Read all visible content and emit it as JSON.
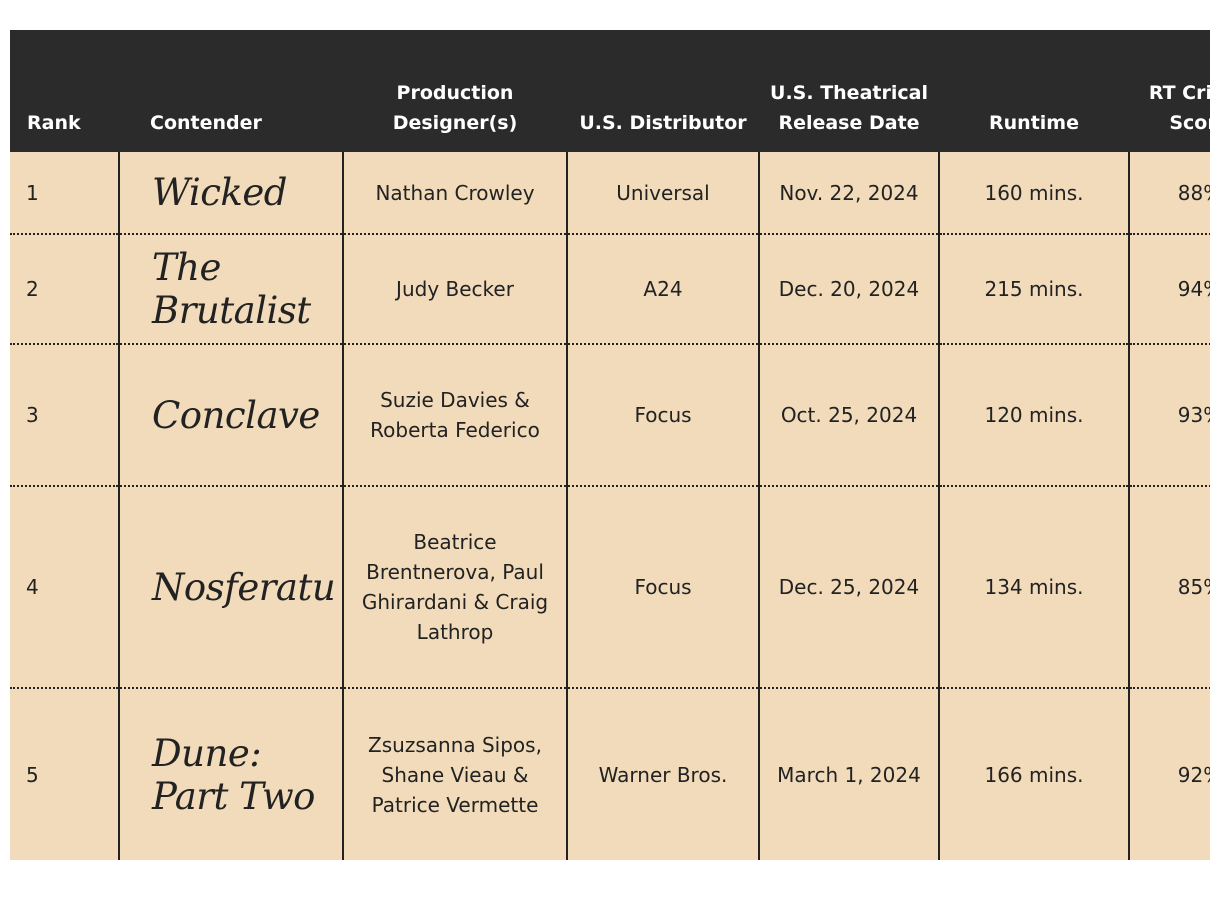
{
  "headers": {
    "rank": "Rank",
    "contender": "Contender",
    "production_designers": "Production Designer(s)",
    "distributor": "U.S. Distributor",
    "release_date": "U.S. Theatrical Release Date",
    "runtime": "Runtime",
    "rt_score": "RT Critics Score"
  },
  "rows": [
    {
      "rank": "1",
      "contender": "Wicked",
      "production_designers": "Nathan Crowley",
      "distributor": "Universal",
      "release_date": "Nov. 22, 2024",
      "runtime": "160 mins.",
      "rt_score": "88%"
    },
    {
      "rank": "2",
      "contender": "The Brutalist",
      "production_designers": "Judy Becker",
      "distributor": "A24",
      "release_date": "Dec. 20, 2024",
      "runtime": "215 mins.",
      "rt_score": "94%"
    },
    {
      "rank": "3",
      "contender": "Conclave",
      "production_designers": "Suzie Davies & Roberta Federico",
      "distributor": "Focus",
      "release_date": "Oct. 25, 2024",
      "runtime": "120 mins.",
      "rt_score": "93%"
    },
    {
      "rank": "4",
      "contender": "Nosferatu",
      "production_designers": "Beatrice Brentnerova, Paul Ghirardani & Craig Lathrop",
      "distributor": "Focus",
      "release_date": "Dec. 25, 2024",
      "runtime": "134 mins.",
      "rt_score": "85%"
    },
    {
      "rank": "5",
      "contender": "Dune: Part Two",
      "production_designers": "Zsuzsanna Sipos, Shane Vieau & Patrice Vermette",
      "distributor": "Warner Bros.",
      "release_date": "March 1, 2024",
      "runtime": "166 mins.",
      "rt_score": "92%"
    }
  ]
}
